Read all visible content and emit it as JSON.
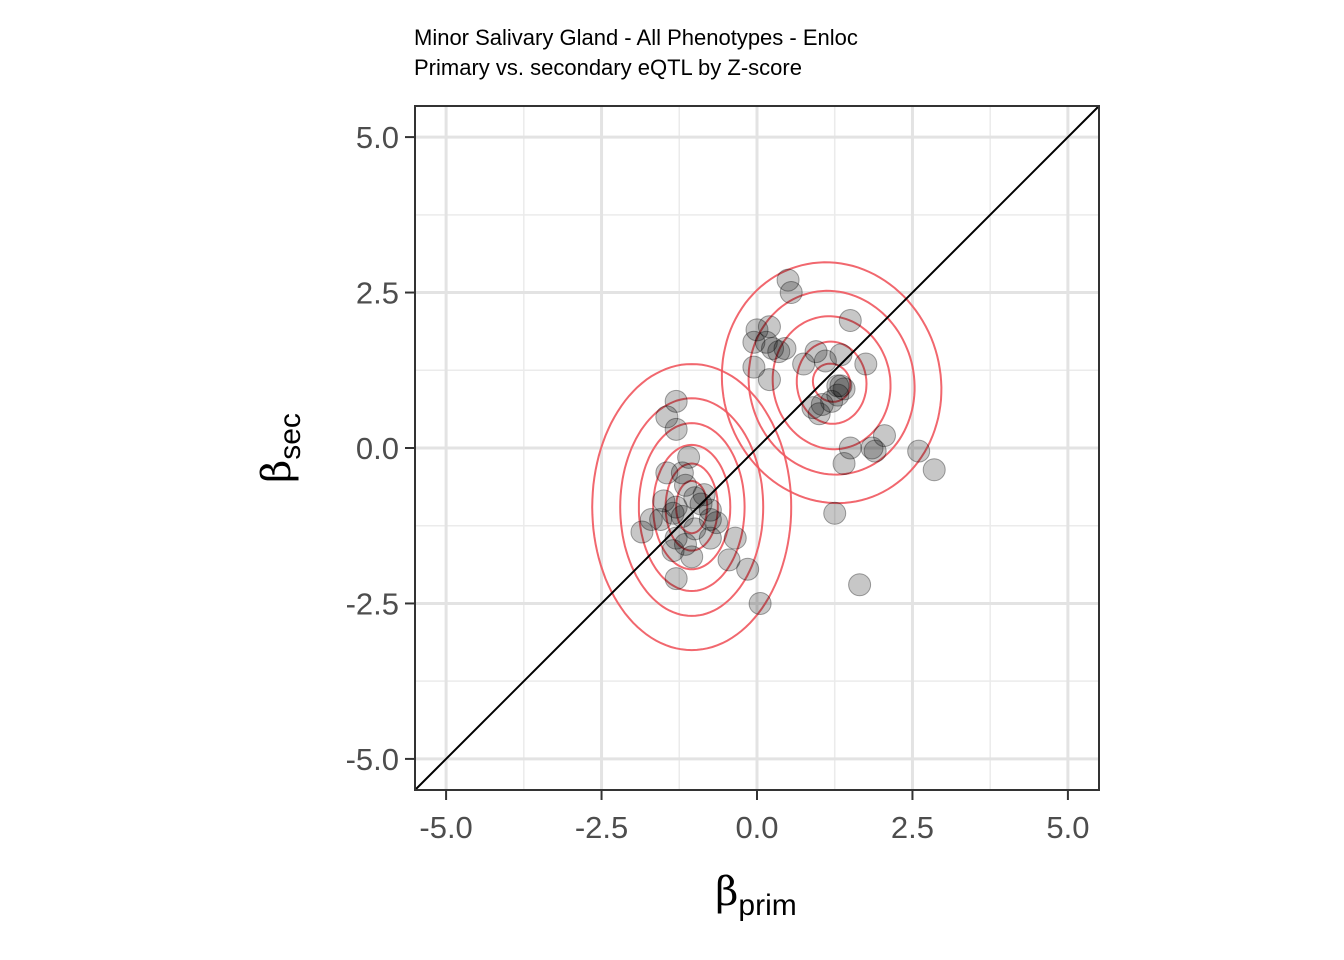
{
  "chart_data": {
    "type": "scatter",
    "title": "Minor Salivary Gland - All Phenotypes - Enloc",
    "subtitle": "Primary vs. secondary eQTL by Z-score",
    "xlabel": "β",
    "xlabel_sub": "prim",
    "ylabel": "β",
    "ylabel_sub": "sec",
    "xlim": [
      -5.5,
      5.5
    ],
    "ylim": [
      -5.5,
      5.5
    ],
    "xticks": [
      -5.0,
      -2.5,
      0.0,
      2.5,
      5.0
    ],
    "yticks": [
      -5.0,
      -2.5,
      0.0,
      2.5,
      5.0
    ],
    "xtick_labels": [
      "-5.0",
      "-2.5",
      "0.0",
      "2.5",
      "5.0"
    ],
    "ytick_labels": [
      "-5.0",
      "-2.5",
      "0.0",
      "2.5",
      "5.0"
    ],
    "grid": true,
    "reference_line": {
      "slope": 1,
      "intercept": 0,
      "color": "#000000"
    },
    "point_color": "#000000",
    "point_opacity": 0.22,
    "contour_color": "#f0575e",
    "points": [
      [
        0.5,
        2.7
      ],
      [
        0.55,
        2.5
      ],
      [
        1.5,
        2.05
      ],
      [
        0.2,
        1.95
      ],
      [
        0.0,
        1.9
      ],
      [
        -0.05,
        1.7
      ],
      [
        0.25,
        1.6
      ],
      [
        0.35,
        1.55
      ],
      [
        0.45,
        1.6
      ],
      [
        0.15,
        1.7
      ],
      [
        0.95,
        1.55
      ],
      [
        1.35,
        1.5
      ],
      [
        1.1,
        1.4
      ],
      [
        0.75,
        1.35
      ],
      [
        1.75,
        1.35
      ],
      [
        -0.05,
        1.3
      ],
      [
        0.2,
        1.1
      ],
      [
        1.3,
        1.0
      ],
      [
        1.35,
        1.0
      ],
      [
        1.4,
        0.95
      ],
      [
        1.3,
        0.85
      ],
      [
        1.2,
        0.75
      ],
      [
        0.9,
        0.65
      ],
      [
        1.05,
        0.7
      ],
      [
        1.0,
        0.55
      ],
      [
        2.05,
        0.2
      ],
      [
        1.5,
        0.0
      ],
      [
        1.9,
        -0.05
      ],
      [
        1.85,
        0.0
      ],
      [
        2.6,
        -0.05
      ],
      [
        1.4,
        -0.25
      ],
      [
        2.85,
        -0.35
      ],
      [
        1.25,
        -1.05
      ],
      [
        1.65,
        -2.2
      ],
      [
        -1.3,
        0.75
      ],
      [
        -1.45,
        0.5
      ],
      [
        -1.3,
        0.3
      ],
      [
        -1.1,
        -0.15
      ],
      [
        -1.45,
        -0.4
      ],
      [
        -1.2,
        -0.4
      ],
      [
        -1.15,
        -0.6
      ],
      [
        -0.85,
        -0.75
      ],
      [
        -1.0,
        -0.8
      ],
      [
        -1.5,
        -0.85
      ],
      [
        -1.3,
        -0.95
      ],
      [
        -1.35,
        -1.05
      ],
      [
        -1.2,
        -1.1
      ],
      [
        -0.9,
        -0.9
      ],
      [
        -0.75,
        -1.0
      ],
      [
        -0.75,
        -1.15
      ],
      [
        -0.65,
        -1.2
      ],
      [
        -1.55,
        -1.15
      ],
      [
        -1.3,
        -1.45
      ],
      [
        -1.0,
        -1.3
      ],
      [
        -0.75,
        -1.45
      ],
      [
        -0.35,
        -1.45
      ],
      [
        -1.15,
        -1.55
      ],
      [
        -1.05,
        -1.75
      ],
      [
        -1.35,
        -1.65
      ],
      [
        -1.85,
        -1.35
      ],
      [
        -1.7,
        -1.15
      ],
      [
        -0.45,
        -1.8
      ],
      [
        -0.15,
        -1.95
      ],
      [
        -1.3,
        -2.1
      ],
      [
        0.05,
        -2.5
      ]
    ]
  }
}
